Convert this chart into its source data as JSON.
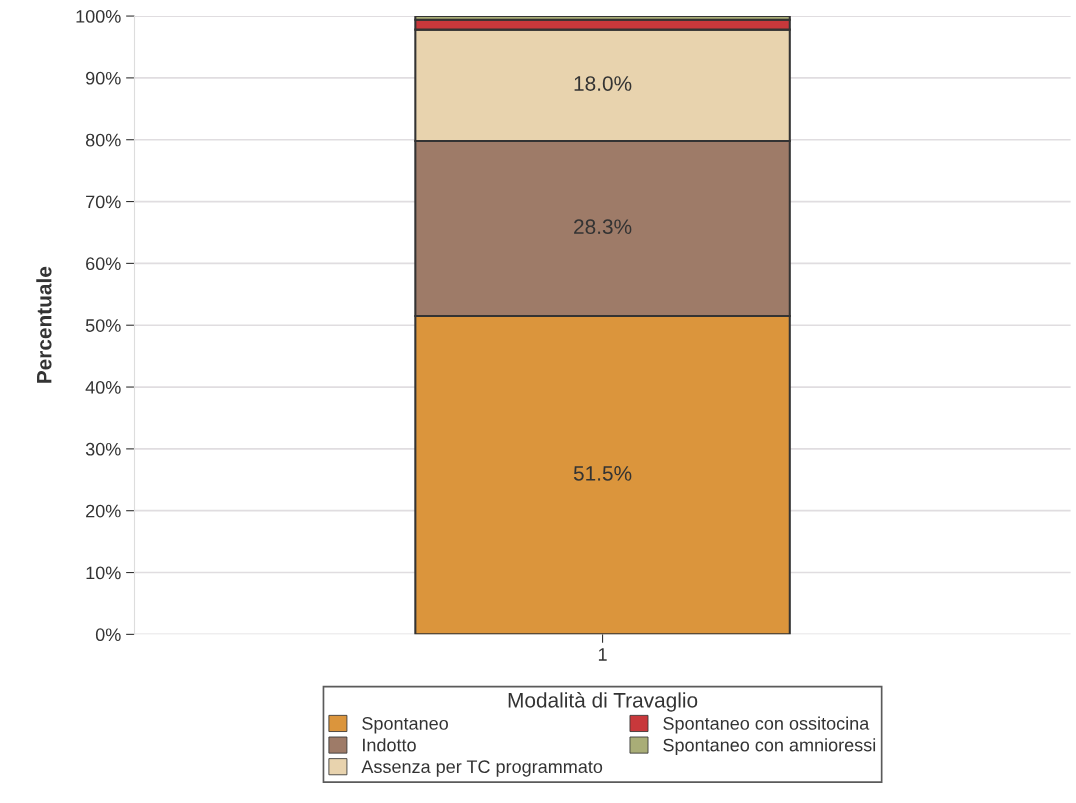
{
  "chart_data": {
    "type": "bar",
    "stacked": true,
    "categories": [
      "1"
    ],
    "ylabel": "Percentuale",
    "legend_title": "Modalità di Travaglio",
    "legend": "bottom",
    "grid": "y",
    "ylim": [
      0,
      100
    ],
    "yticks": [
      {
        "value": 0,
        "label": "0%"
      },
      {
        "value": 10,
        "label": "10%"
      },
      {
        "value": 20,
        "label": "20%"
      },
      {
        "value": 30,
        "label": "30%"
      },
      {
        "value": 40,
        "label": "40%"
      },
      {
        "value": 50,
        "label": "50%"
      },
      {
        "value": 60,
        "label": "60%"
      },
      {
        "value": 70,
        "label": "70%"
      },
      {
        "value": 80,
        "label": "80%"
      },
      {
        "value": 90,
        "label": "90%"
      },
      {
        "value": 100,
        "label": "100%"
      }
    ],
    "series": [
      {
        "name": "Spontaneo",
        "color": "#db953c",
        "values": [
          51.5
        ],
        "value_labels": [
          "51.5%"
        ]
      },
      {
        "name": "Indotto",
        "color": "#9e7b68",
        "values": [
          28.3
        ],
        "value_labels": [
          "28.3%"
        ]
      },
      {
        "name": "Assenza per TC programmato",
        "color": "#e8d3ae",
        "values": [
          18.0
        ],
        "value_labels": [
          "18.0%"
        ]
      },
      {
        "name": "Spontaneo con ossitocina",
        "color": "#c8383b",
        "values": [
          1.6
        ],
        "value_labels": [
          null
        ]
      },
      {
        "name": "Spontaneo con amnioressi",
        "color": "#a9ad77",
        "values": [
          0.6
        ],
        "value_labels": [
          null
        ]
      }
    ]
  }
}
